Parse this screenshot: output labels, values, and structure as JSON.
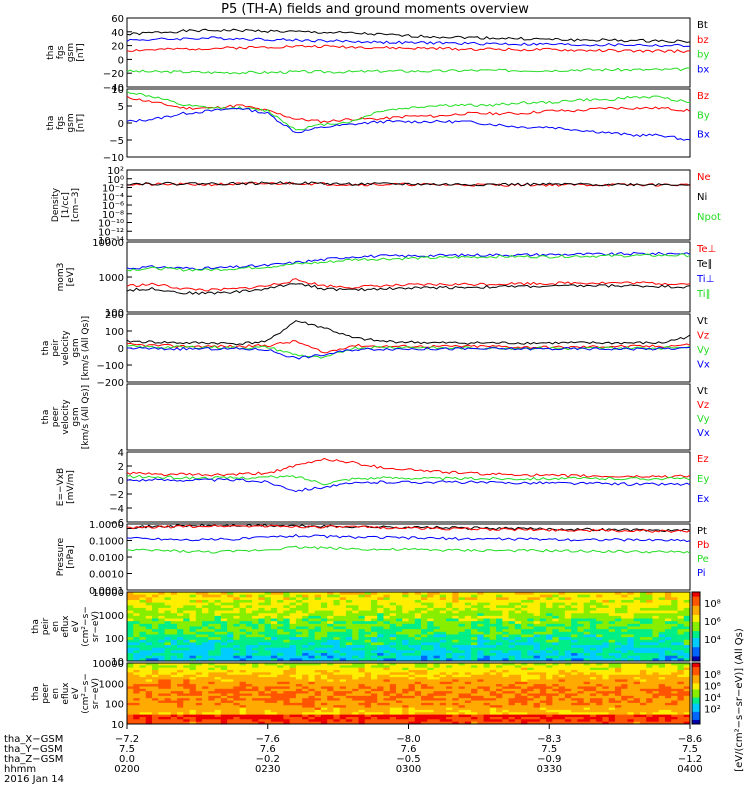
{
  "title": "P5 (TH-A) fields and ground moments overview",
  "colors": {
    "black": "#000000",
    "red": "#ff0000",
    "green": "#22dd22",
    "blue": "#0000ff"
  },
  "chart_data": [
    {
      "type": "line",
      "ylabel": [
        "tha",
        "fgs",
        "gsm",
        "[nT]"
      ],
      "ylim": [
        -40,
        60
      ],
      "yticks": [
        "60",
        "40",
        "20",
        "0",
        "−20",
        "−40"
      ],
      "legend": [
        "Bt",
        "bz",
        "by",
        "bx"
      ],
      "series": [
        {
          "name": "Bt",
          "color": "black",
          "values": [
            36,
            39,
            41,
            42,
            42,
            41,
            40,
            39,
            38,
            36,
            34,
            33,
            32,
            31,
            30,
            29,
            28,
            28,
            27,
            27,
            26
          ]
        },
        {
          "name": "bz",
          "color": "red",
          "values": [
            13,
            14,
            15,
            16,
            17,
            18,
            19,
            19,
            18,
            17,
            16,
            16,
            15,
            15,
            14,
            14,
            13,
            13,
            12,
            12,
            12
          ]
        },
        {
          "name": "by",
          "color": "green",
          "values": [
            -17,
            -18,
            -18,
            -19,
            -19,
            -19,
            -18,
            -18,
            -18,
            -17,
            -17,
            -17,
            -16,
            -16,
            -16,
            -16,
            -15,
            -15,
            -15,
            -15,
            -14
          ]
        },
        {
          "name": "bx",
          "color": "blue",
          "values": [
            28,
            29,
            30,
            31,
            30,
            29,
            28,
            27,
            26,
            25,
            24,
            24,
            23,
            23,
            22,
            22,
            21,
            21,
            21,
            20,
            20
          ]
        }
      ]
    },
    {
      "type": "line",
      "ylabel": [
        "tha",
        "fgs",
        "gsm",
        "[nT]"
      ],
      "ylim": [
        -15,
        10
      ],
      "yticks": [
        "10",
        "5",
        "0",
        "−5",
        "−10"
      ],
      "legend": [
        "Bz",
        "By",
        "Bx"
      ],
      "series": [
        {
          "name": "Bz",
          "color": "red",
          "values": [
            7,
            5,
            3,
            3,
            4,
            2,
            -1,
            -2,
            -1,
            -1,
            0,
            0,
            1,
            1,
            1,
            2,
            2,
            3,
            3,
            3,
            2
          ]
        },
        {
          "name": "By",
          "color": "green",
          "values": [
            9,
            7,
            4,
            3,
            3,
            2,
            -5,
            -3,
            -2,
            2,
            3,
            4,
            4,
            4,
            5,
            5,
            6,
            6,
            7,
            7,
            5
          ]
        },
        {
          "name": "Bx",
          "color": "blue",
          "values": [
            -2,
            -1,
            1,
            2,
            3,
            1,
            -6,
            -4,
            -3,
            -2,
            -2,
            -2,
            -2,
            -3,
            -4,
            -4,
            -5,
            -6,
            -7,
            -7,
            -9
          ]
        }
      ]
    },
    {
      "type": "line",
      "ylabel": [
        "Density",
        "[1/cc]",
        "[cm−3]"
      ],
      "yscale": "log",
      "ylim": [
        -14,
        3
      ],
      "yticks": [
        "10²",
        "10⁰",
        "10⁻²",
        "10⁻⁴",
        "10⁻⁶",
        "10⁻⁸",
        "10⁻¹⁰",
        "10⁻¹²",
        "10⁻¹⁴"
      ],
      "legend": [
        "Ne",
        "Ni",
        "Npot"
      ],
      "series": [
        {
          "name": "Ne",
          "color": "red",
          "values": [
            -0.5,
            -0.5,
            -0.5,
            -0.5,
            -0.4,
            -0.3,
            -0.2,
            -0.4,
            -0.5,
            -0.5,
            -0.5,
            -0.6,
            -0.6,
            -0.6,
            -0.6,
            -0.6,
            -0.6,
            -0.6,
            -0.6,
            -0.6,
            -0.6
          ]
        },
        {
          "name": "Ni",
          "color": "black",
          "values": [
            -0.3,
            -0.3,
            -0.3,
            -0.3,
            -0.3,
            -0.2,
            -0.1,
            -0.3,
            -0.4,
            -0.4,
            -0.4,
            -0.5,
            -0.5,
            -0.5,
            -0.5,
            -0.5,
            -0.5,
            -0.5,
            -0.5,
            -0.5,
            -0.5
          ]
        }
      ]
    },
    {
      "type": "line",
      "ylabel": [
        "mom3",
        "[eV]"
      ],
      "yscale": "log",
      "ylim": [
        1.8,
        4.2
      ],
      "yticks": [
        "10000",
        "1000",
        "100"
      ],
      "legend": [
        "Te⊥",
        "Te∥",
        "Ti⊥",
        "Ti∥"
      ],
      "series": [
        {
          "name": "Ti⊥",
          "color": "blue",
          "values": [
            3.3,
            3.35,
            3.3,
            3.3,
            3.35,
            3.4,
            3.5,
            3.6,
            3.7,
            3.72,
            3.72,
            3.74,
            3.75,
            3.76,
            3.76,
            3.77,
            3.78,
            3.78,
            3.8,
            3.8,
            3.82
          ]
        },
        {
          "name": "Ti∥",
          "color": "green",
          "values": [
            3.25,
            3.3,
            3.25,
            3.25,
            3.3,
            3.35,
            3.45,
            3.5,
            3.6,
            3.62,
            3.64,
            3.66,
            3.68,
            3.7,
            3.7,
            3.7,
            3.72,
            3.72,
            3.74,
            3.74,
            3.75
          ]
        },
        {
          "name": "Te⊥",
          "color": "red",
          "values": [
            2.7,
            2.75,
            2.6,
            2.55,
            2.6,
            2.7,
            2.9,
            2.7,
            2.65,
            2.7,
            2.72,
            2.74,
            2.75,
            2.76,
            2.78,
            2.78,
            2.8,
            2.8,
            2.8,
            2.78,
            2.76
          ]
        },
        {
          "name": "Te∥",
          "color": "black",
          "values": [
            2.55,
            2.6,
            2.45,
            2.45,
            2.5,
            2.6,
            2.8,
            2.6,
            2.55,
            2.6,
            2.62,
            2.64,
            2.65,
            2.66,
            2.68,
            2.68,
            2.7,
            2.7,
            2.7,
            2.68,
            2.66
          ]
        }
      ]
    },
    {
      "type": "line",
      "ylabel": [
        "tha",
        "peir",
        "velocity",
        "gsm",
        "[km/s (All Qs)]"
      ],
      "ylim": [
        -200,
        200
      ],
      "yticks": [
        "200",
        "100",
        "0",
        "−100",
        "−200"
      ],
      "legend": [
        "Vt",
        "Vz",
        "Vy",
        "Vx"
      ],
      "series": [
        {
          "name": "Vt",
          "color": "black",
          "values": [
            40,
            35,
            30,
            30,
            25,
            40,
            160,
            120,
            60,
            40,
            35,
            30,
            30,
            30,
            30,
            30,
            30,
            30,
            30,
            30,
            70
          ]
        },
        {
          "name": "Vz",
          "color": "red",
          "values": [
            20,
            15,
            10,
            10,
            10,
            15,
            40,
            -30,
            15,
            10,
            10,
            10,
            10,
            10,
            5,
            5,
            5,
            10,
            10,
            10,
            20
          ]
        },
        {
          "name": "Vy",
          "color": "green",
          "values": [
            10,
            5,
            5,
            5,
            0,
            5,
            -40,
            -60,
            0,
            5,
            5,
            0,
            0,
            0,
            0,
            0,
            -5,
            0,
            0,
            0,
            10
          ]
        },
        {
          "name": "Vx",
          "color": "blue",
          "values": [
            0,
            -5,
            -5,
            -5,
            -5,
            -10,
            -60,
            -40,
            -10,
            -5,
            -5,
            -5,
            -5,
            -5,
            -5,
            -5,
            -5,
            -5,
            -5,
            -5,
            0
          ]
        }
      ]
    },
    {
      "type": "line",
      "ylabel": [
        "tha",
        "peer",
        "velocity",
        "gsm",
        "[km/s (All Qs)]"
      ],
      "ylim": [
        0,
        1
      ],
      "yticks": [],
      "legend": [
        "Vt",
        "Vz",
        "Vy",
        "Vx"
      ],
      "series": []
    },
    {
      "type": "line",
      "ylabel": [
        "E=−VxB",
        "[mV/m]"
      ],
      "ylim": [
        -6,
        4
      ],
      "yticks": [
        "4",
        "2",
        "0",
        "−2",
        "−4",
        "−6"
      ],
      "legend": [
        "Ez",
        "Ey",
        "Ex"
      ],
      "series": [
        {
          "name": "Ez",
          "color": "red",
          "values": [
            1,
            0.8,
            0.8,
            0.7,
            0.8,
            1,
            2,
            3,
            2.5,
            1.8,
            1.5,
            1.2,
            1,
            0.8,
            0.8,
            0.6,
            0.6,
            0.5,
            0.5,
            0.5,
            0.6
          ]
        },
        {
          "name": "Ey",
          "color": "green",
          "values": [
            0.5,
            0.4,
            0.3,
            0.3,
            0.3,
            0.4,
            0.5,
            -0.5,
            0.2,
            0.3,
            0.3,
            0.2,
            0.2,
            0.2,
            0.2,
            0.2,
            0.2,
            0.2,
            0.2,
            0.2,
            0.2
          ]
        },
        {
          "name": "Ex",
          "color": "blue",
          "values": [
            0,
            0,
            0,
            0,
            0,
            -0.3,
            -1.5,
            -1,
            -0.5,
            -0.3,
            -0.3,
            -0.3,
            -0.3,
            -0.4,
            -0.4,
            -0.4,
            -0.5,
            -0.5,
            -0.6,
            -0.6,
            -0.6
          ]
        }
      ]
    },
    {
      "type": "line",
      "ylabel": [
        "Pressure",
        "[nPa]"
      ],
      "yscale": "log",
      "ylim": [
        -4,
        0
      ],
      "yticks": [
        "1.0000",
        "0.1000",
        "0.0100",
        "0.0010",
        "0.0001"
      ],
      "legend": [
        "Pt",
        "Pb",
        "Pe",
        "Pi"
      ],
      "series": [
        {
          "name": "Pt",
          "color": "black",
          "values": [
            -0.2,
            -0.15,
            -0.12,
            -0.1,
            -0.1,
            -0.1,
            -0.12,
            -0.14,
            -0.16,
            -0.18,
            -0.2,
            -0.22,
            -0.24,
            -0.26,
            -0.28,
            -0.3,
            -0.32,
            -0.34,
            -0.36,
            -0.38,
            -0.4
          ]
        },
        {
          "name": "Pb",
          "color": "red",
          "values": [
            -0.25,
            -0.2,
            -0.15,
            -0.12,
            -0.12,
            -0.13,
            -0.15,
            -0.17,
            -0.19,
            -0.21,
            -0.24,
            -0.27,
            -0.3,
            -0.32,
            -0.34,
            -0.36,
            -0.38,
            -0.4,
            -0.42,
            -0.44,
            -0.46
          ]
        },
        {
          "name": "Pe",
          "color": "green",
          "values": [
            -1.6,
            -1.6,
            -1.65,
            -1.7,
            -1.65,
            -1.55,
            -1.4,
            -1.45,
            -1.5,
            -1.55,
            -1.55,
            -1.58,
            -1.6,
            -1.6,
            -1.62,
            -1.62,
            -1.65,
            -1.65,
            -1.68,
            -1.7,
            -1.7
          ]
        },
        {
          "name": "Pi",
          "color": "blue",
          "values": [
            -0.85,
            -0.9,
            -0.95,
            -0.95,
            -0.9,
            -0.8,
            -0.7,
            -0.75,
            -0.8,
            -0.82,
            -0.85,
            -0.87,
            -0.9,
            -0.9,
            -0.92,
            -0.92,
            -0.95,
            -0.95,
            -0.97,
            -0.97,
            -1
          ]
        }
      ]
    },
    {
      "type": "heatmap",
      "ylabel": [
        "tha",
        "peir",
        "en",
        "eflux",
        "eV",
        "(cm²−s−",
        "sr−eV)"
      ],
      "yticks": [
        "10000",
        "1000",
        "100",
        "10"
      ],
      "colorbar_ticks": [
        "10⁸",
        "10⁶",
        "10⁴"
      ]
    },
    {
      "type": "heatmap",
      "ylabel": [
        "tha",
        "peer",
        "en",
        "eflux",
        "eV",
        "(cm²−s−",
        "sr−eV)"
      ],
      "yticks": [
        "10000",
        "1000",
        "100",
        "10"
      ],
      "colorbar_ticks": [
        "10⁸",
        "10⁶",
        "10⁴",
        "10²"
      ]
    }
  ],
  "colorbar_label": "[eV/(cm²−s−sr−eV)] (All Qs)",
  "xaxis": {
    "rows": [
      {
        "label": "tha_X−GSM",
        "values": [
          "−7.2",
          "−7.6",
          "−8.0",
          "−8.3",
          "−8.6"
        ]
      },
      {
        "label": "tha_Y−GSM",
        "values": [
          "7.5",
          "7.6",
          "7.6",
          "7.5",
          "7.5"
        ]
      },
      {
        "label": "tha_Z−GSM",
        "values": [
          "0.0",
          "−0.2",
          "−0.5",
          "−0.9",
          "−1.2"
        ]
      },
      {
        "label": "hhmm",
        "values": [
          "0200",
          "0230",
          "0300",
          "0330",
          "0400"
        ]
      }
    ],
    "date": "2016 Jan 14"
  }
}
